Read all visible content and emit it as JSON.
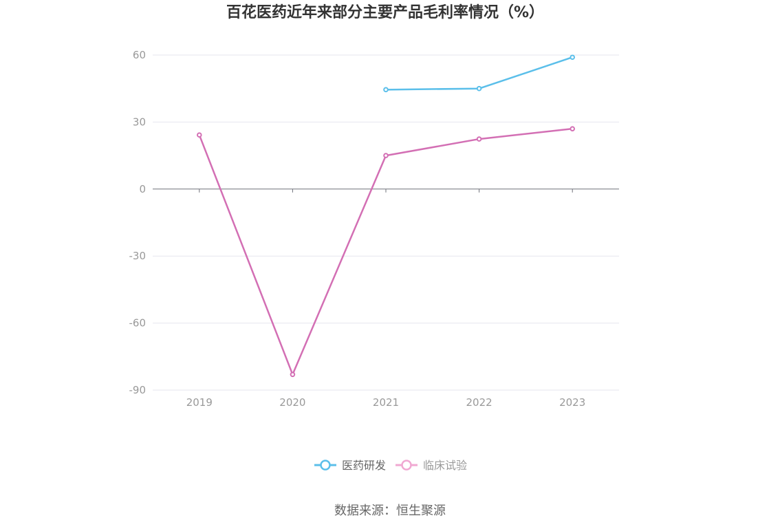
{
  "chart_data": {
    "type": "line",
    "title": "百花医药近年来部分主要产品毛利率情况（%）",
    "categories": [
      "2019",
      "2020",
      "2021",
      "2022",
      "2023"
    ],
    "yticks": [
      60,
      30,
      0,
      -30,
      -60,
      -90
    ],
    "ylim": [
      -90,
      60
    ],
    "grid": true,
    "legend_position": "bottom-center",
    "series": [
      {
        "name": "医药研发",
        "color": "#5bbfea",
        "values": [
          null,
          null,
          44.5,
          45.0,
          59.0
        ]
      },
      {
        "name": "临床试验",
        "color": "#d36fb4",
        "values": [
          24.2,
          -83.0,
          15.0,
          22.4,
          27.0
        ]
      }
    ]
  },
  "legend_colors": {
    "active_text": "#666666",
    "inactive_text": "#999999",
    "inactive_series_color": "#f0a8d2"
  },
  "source": "数据来源：恒生聚源"
}
